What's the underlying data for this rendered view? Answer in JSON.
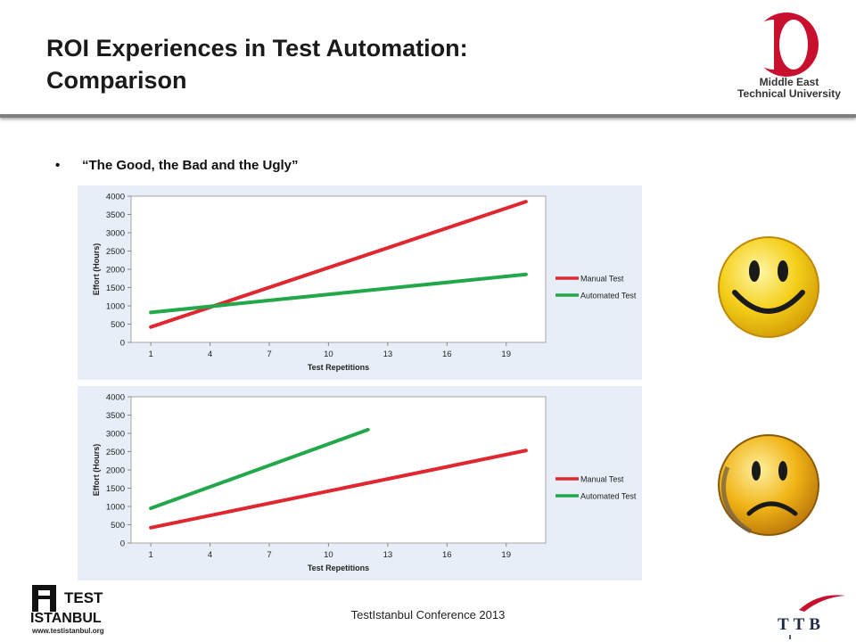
{
  "slide": {
    "title_line1": "ROI Experiences in Test Automation:",
    "title_line2": "Comparison",
    "bullet": "“The Good, the Bad and the Ugly”",
    "footer": "TestIstanbul Conference 2013"
  },
  "logos": {
    "metu_line1": "Middle East",
    "metu_line2": "Technical University",
    "test_word": "TEST",
    "istanbul_word": "ISTANBUL",
    "test_url": "www.testistanbul.org",
    "ttb": "TTB"
  },
  "faces": {
    "top": "smiley-face-icon",
    "bottom": "sad-face-icon"
  },
  "colors": {
    "manual": "#e0262e",
    "automated": "#22a84a",
    "band": "#c9d9ef",
    "accent": "#c8102e"
  },
  "chart_data": [
    {
      "type": "line",
      "xlabel": "Test Repetitions",
      "ylabel": "Effort (Hours)",
      "xticks": [
        1,
        4,
        7,
        10,
        13,
        16,
        19
      ],
      "yticks": [
        0,
        500,
        1000,
        1500,
        2000,
        2500,
        3000,
        3500,
        4000
      ],
      "xlim": [
        0,
        21
      ],
      "ylim": [
        0,
        4000
      ],
      "legend_position": "right",
      "series": [
        {
          "name": "Manual Test",
          "x": [
            1,
            20
          ],
          "y": [
            420,
            3850
          ]
        },
        {
          "name": "Automated Test",
          "x": [
            1,
            20
          ],
          "y": [
            820,
            1860
          ]
        }
      ]
    },
    {
      "type": "line",
      "xlabel": "Test Repetitions",
      "ylabel": "Effort (Hours)",
      "xticks": [
        1,
        4,
        7,
        10,
        13,
        16,
        19
      ],
      "yticks": [
        0,
        500,
        1000,
        1500,
        2000,
        2500,
        3000,
        3500,
        4000
      ],
      "xlim": [
        0,
        21
      ],
      "ylim": [
        0,
        4000
      ],
      "legend_position": "right",
      "series": [
        {
          "name": "Manual Test",
          "x": [
            1,
            20
          ],
          "y": [
            420,
            2530
          ]
        },
        {
          "name": "Automated Test",
          "x": [
            1,
            12
          ],
          "y": [
            950,
            3100
          ]
        }
      ]
    }
  ]
}
